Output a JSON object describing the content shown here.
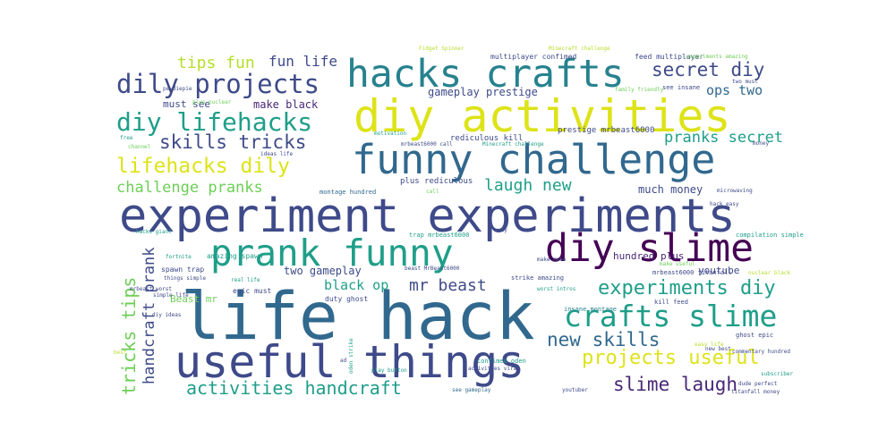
{
  "palette": {
    "dark-purple": "#440154",
    "indigo": "#482878",
    "navy": "#3e4a89",
    "slate-blue": "#31688e",
    "teal": "#26828e",
    "sea-green": "#1f9e89",
    "green": "#35b779",
    "light-green": "#6ece58",
    "lime": "#b5de2b",
    "yellow": "#dde318",
    "bright-yellow": "#fde725"
  },
  "words": [
    {
      "text": "life hack",
      "color": "slate-blue",
      "rotated": false
    },
    {
      "text": "experiment experiments",
      "color": "navy",
      "rotated": false
    },
    {
      "text": "diy activities",
      "color": "yellow",
      "rotated": false
    },
    {
      "text": "useful things",
      "color": "navy",
      "rotated": false
    },
    {
      "text": "funny challenge",
      "color": "slate-blue",
      "rotated": false
    },
    {
      "text": "hacks crafts",
      "color": "teal",
      "rotated": false
    },
    {
      "text": "diy slime",
      "color": "dark-purple",
      "rotated": false
    },
    {
      "text": "prank funny",
      "color": "sea-green",
      "rotated": false
    },
    {
      "text": "dily projects",
      "color": "navy",
      "rotated": false
    },
    {
      "text": "crafts slime",
      "color": "sea-green",
      "rotated": false
    },
    {
      "text": "diy lifehacks",
      "color": "sea-green",
      "rotated": false
    },
    {
      "text": "lifehacks dily",
      "color": "yellow",
      "rotated": false
    },
    {
      "text": "experiments diy",
      "color": "sea-green",
      "rotated": false
    },
    {
      "text": "projects useful",
      "color": "yellow",
      "rotated": false
    },
    {
      "text": "activities handcraft",
      "color": "sea-green",
      "rotated": false
    },
    {
      "text": "skills tricks",
      "color": "navy",
      "rotated": false
    },
    {
      "text": "secret diy",
      "color": "navy",
      "rotated": false
    },
    {
      "text": "challenge pranks",
      "color": "light-green",
      "rotated": false
    },
    {
      "text": "new skills",
      "color": "slate-blue",
      "rotated": false
    },
    {
      "text": "slime laugh",
      "color": "indigo",
      "rotated": false
    },
    {
      "text": "tricks tips",
      "color": "light-green",
      "rotated": true
    },
    {
      "text": "handcraft prank",
      "color": "navy",
      "rotated": true
    },
    {
      "text": "laugh new",
      "color": "sea-green",
      "rotated": false
    },
    {
      "text": "pranks secret",
      "color": "sea-green",
      "rotated": false
    },
    {
      "text": "tips fun",
      "color": "lime",
      "rotated": false
    },
    {
      "text": "fun life",
      "color": "navy",
      "rotated": false
    },
    {
      "text": "mr beast",
      "color": "navy",
      "rotated": false
    },
    {
      "text": "ops two",
      "color": "slate-blue",
      "rotated": false
    },
    {
      "text": "black op",
      "color": "sea-green",
      "rotated": false
    },
    {
      "text": "gameplay prestige",
      "color": "navy",
      "rotated": false
    },
    {
      "text": "make black",
      "color": "indigo",
      "rotated": false
    },
    {
      "text": "must see",
      "color": "navy",
      "rotated": false
    },
    {
      "text": "much money",
      "color": "navy",
      "rotated": false
    },
    {
      "text": "two gameplay",
      "color": "navy",
      "rotated": false
    },
    {
      "text": "youtube",
      "color": "navy",
      "rotated": false
    },
    {
      "text": "hundred plus",
      "color": "indigo",
      "rotated": false
    },
    {
      "text": "Beast mr",
      "color": "light-green",
      "rotated": false
    },
    {
      "text": "prestige mrbeast6000",
      "color": "navy",
      "rotated": false
    },
    {
      "text": "rediculous kill",
      "color": "navy",
      "rotated": false
    },
    {
      "text": "plus rediculous",
      "color": "navy",
      "rotated": false
    },
    {
      "text": "multiplayer confimed",
      "color": "navy",
      "rotated": false
    },
    {
      "text": "feed multiplayer",
      "color": "navy",
      "rotated": false
    },
    {
      "text": "see insane",
      "color": "navy",
      "rotated": false
    },
    {
      "text": "spawn trap",
      "color": "navy",
      "rotated": false
    },
    {
      "text": "amazing spawn",
      "color": "sea-green",
      "rotated": false
    },
    {
      "text": "epic must",
      "color": "navy",
      "rotated": false
    },
    {
      "text": "duty ghost",
      "color": "navy",
      "rotated": false
    },
    {
      "text": "kill feed",
      "color": "navy",
      "rotated": false
    },
    {
      "text": "ghost epic",
      "color": "navy",
      "rotated": false
    },
    {
      "text": "insane montage",
      "color": "teal",
      "rotated": false
    },
    {
      "text": "strike amazing",
      "color": "navy",
      "rotated": false
    },
    {
      "text": "confimed oden",
      "color": "sea-green",
      "rotated": false
    },
    {
      "text": "montage hundred",
      "color": "slate-blue",
      "rotated": false
    },
    {
      "text": "trap mrbeast6000",
      "color": "sea-green",
      "rotated": false
    },
    {
      "text": "mrbeast6000 titanfall",
      "color": "navy",
      "rotated": false
    },
    {
      "text": "compilation simple",
      "color": "sea-green",
      "rotated": false
    },
    {
      "text": "play button",
      "color": "sea-green",
      "rotated": false
    },
    {
      "text": "see gameplay",
      "color": "slate-blue",
      "rotated": false
    },
    {
      "text": "youtuber",
      "color": "navy",
      "rotated": false
    },
    {
      "text": "dude perfect",
      "color": "navy",
      "rotated": false
    },
    {
      "text": "titanfall money",
      "color": "navy",
      "rotated": false
    },
    {
      "text": "subscriber",
      "color": "sea-green",
      "rotated": false
    },
    {
      "text": "commentary hundred",
      "color": "navy",
      "rotated": false
    },
    {
      "text": "Fidget Spinner",
      "color": "lime",
      "rotated": false
    },
    {
      "text": "Minecraft challenge",
      "color": "lime",
      "rotated": false
    },
    {
      "text": "experiments amazing",
      "color": "light-green",
      "rotated": false
    },
    {
      "text": "two must",
      "color": "navy",
      "rotated": false
    },
    {
      "text": "family friendly",
      "color": "light-green",
      "rotated": false
    },
    {
      "text": "pewdiepie",
      "color": "navy",
      "rotated": false
    },
    {
      "text": "plus nuclear",
      "color": "light-green",
      "rotated": false
    },
    {
      "text": "motivation",
      "color": "sea-green",
      "rotated": false
    },
    {
      "text": "mrbeast6000 call",
      "color": "navy",
      "rotated": false
    },
    {
      "text": "Minecraft challenge",
      "color": "sea-green",
      "rotated": false
    },
    {
      "text": "ideas life",
      "color": "navy",
      "rotated": false
    },
    {
      "text": "money",
      "color": "navy",
      "rotated": false
    },
    {
      "text": "free",
      "color": "sea-green",
      "rotated": false
    },
    {
      "text": "channel",
      "color": "light-green",
      "rotated": false
    },
    {
      "text": "hack easy",
      "color": "navy",
      "rotated": false
    },
    {
      "text": "microwaving",
      "color": "navy",
      "rotated": false
    },
    {
      "text": "call",
      "color": "light-green",
      "rotated": false
    },
    {
      "text": "hacks giant",
      "color": "sea-green",
      "rotated": false
    },
    {
      "text": "fortnite",
      "color": "sea-green",
      "rotated": false
    },
    {
      "text": "things simple",
      "color": "navy",
      "rotated": false
    },
    {
      "text": "real life",
      "color": "sea-green",
      "rotated": false
    },
    {
      "text": "beast MrBeast6000",
      "color": "navy",
      "rotated": false
    },
    {
      "text": "make make",
      "color": "navy",
      "rotated": false
    },
    {
      "text": "make useful",
      "color": "light-green",
      "rotated": false
    },
    {
      "text": "nuclear black",
      "color": "lime",
      "rotated": false
    },
    {
      "text": "way",
      "color": "navy",
      "rotated": false
    },
    {
      "text": "mrbeast worst",
      "color": "navy",
      "rotated": false
    },
    {
      "text": "simple life",
      "color": "navy",
      "rotated": false
    },
    {
      "text": "worst intros",
      "color": "sea-green",
      "rotated": false
    },
    {
      "text": "easy life",
      "color": "lime",
      "rotated": false
    },
    {
      "text": "new best",
      "color": "navy",
      "rotated": false
    },
    {
      "text": "best",
      "color": "lime",
      "rotated": false
    },
    {
      "text": "diy ideas",
      "color": "navy",
      "rotated": false
    },
    {
      "text": "ad",
      "color": "navy",
      "rotated": false
    },
    {
      "text": "oden strike",
      "color": "sea-green",
      "rotated": true
    },
    {
      "text": "activities viral",
      "color": "navy",
      "rotated": false
    }
  ]
}
